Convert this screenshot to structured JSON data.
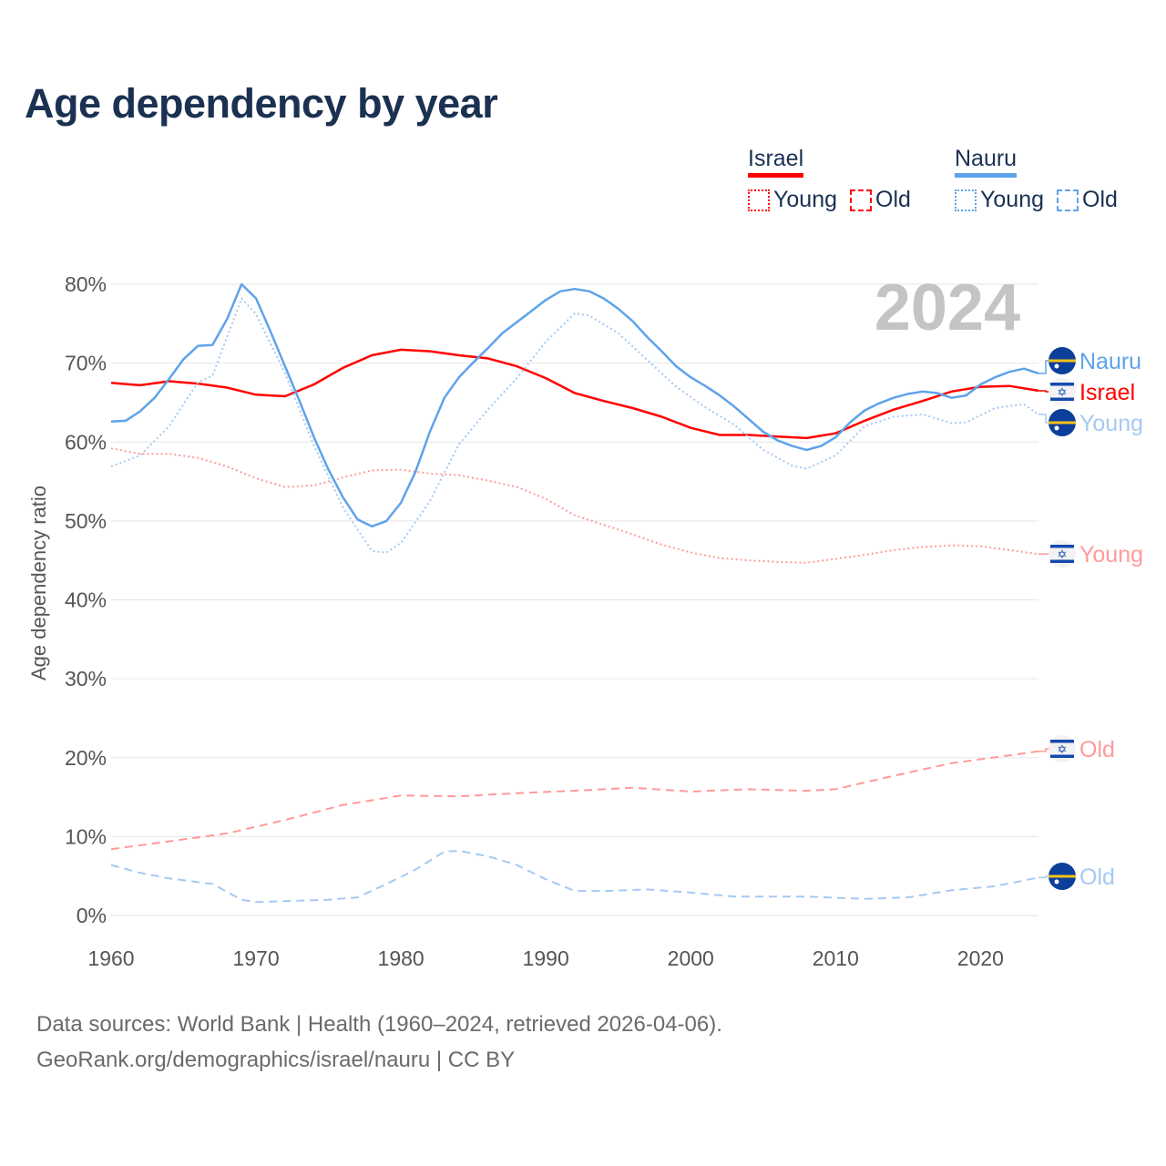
{
  "title": "Age dependency by year",
  "legend": {
    "groups": [
      {
        "name": "Israel",
        "color": "#ff0000",
        "items": [
          "Young",
          "Old"
        ]
      },
      {
        "name": "Nauru",
        "color": "#5ea3ea",
        "items": [
          "Young",
          "Old"
        ]
      }
    ]
  },
  "year_label": "2024",
  "footer": {
    "line1": "Data sources: World Bank | Health (1960–2024, retrieved 2026-04-06).",
    "line2": "GeoRank.org/demographics/israel/nauru | CC BY"
  },
  "chart_data": {
    "type": "line",
    "title": "Age dependency by year",
    "xlabel": "",
    "ylabel": "Age dependency ratio",
    "xlim": [
      1960,
      2024
    ],
    "ylim": [
      0,
      80
    ],
    "x_ticks": [
      "1960",
      "1970",
      "1980",
      "1990",
      "2000",
      "2010",
      "2020"
    ],
    "y_ticks": [
      "0%",
      "10%",
      "20%",
      "30%",
      "40%",
      "50%",
      "60%",
      "70%",
      "80%"
    ],
    "grid": true,
    "series": [
      {
        "name": "Israel",
        "label": "Israel",
        "country": "Israel",
        "style": "solid",
        "color": "#ff0000",
        "x": [
          1960,
          1962,
          1964,
          1966,
          1968,
          1970,
          1972,
          1974,
          1976,
          1978,
          1980,
          1982,
          1984,
          1986,
          1988,
          1990,
          1992,
          1994,
          1996,
          1998,
          2000,
          2002,
          2004,
          2006,
          2008,
          2010,
          2012,
          2014,
          2016,
          2018,
          2020,
          2022,
          2024
        ],
        "y": [
          67.5,
          67.2,
          67.7,
          67.4,
          66.9,
          66.0,
          65.8,
          67.3,
          69.4,
          71.0,
          71.7,
          71.5,
          71.0,
          70.6,
          69.6,
          68.1,
          66.2,
          65.2,
          64.3,
          63.2,
          61.8,
          60.9,
          60.9,
          60.7,
          60.5,
          61.1,
          62.7,
          64.1,
          65.2,
          66.4,
          67.0,
          67.1,
          66.5
        ]
      },
      {
        "name": "Israel Young",
        "label": "Young",
        "country": "Israel",
        "style": "dotted",
        "color": "#ff9a9a",
        "x": [
          1960,
          1962,
          1964,
          1966,
          1968,
          1970,
          1972,
          1974,
          1976,
          1978,
          1980,
          1982,
          1984,
          1986,
          1988,
          1990,
          1992,
          1994,
          1996,
          1998,
          2000,
          2002,
          2004,
          2006,
          2008,
          2010,
          2012,
          2014,
          2016,
          2018,
          2020,
          2022,
          2024
        ],
        "y": [
          59.2,
          58.5,
          58.5,
          58.0,
          56.9,
          55.4,
          54.3,
          54.5,
          55.5,
          56.4,
          56.5,
          56.0,
          55.8,
          55.1,
          54.3,
          52.8,
          50.7,
          49.5,
          48.3,
          47.0,
          46.0,
          45.3,
          45.0,
          44.8,
          44.7,
          45.2,
          45.7,
          46.3,
          46.7,
          46.9,
          46.8,
          46.3,
          45.8
        ]
      },
      {
        "name": "Israel Old",
        "label": "Old",
        "country": "Israel",
        "style": "dashed",
        "color": "#ff9a9a",
        "x": [
          1960,
          1964,
          1968,
          1972,
          1976,
          1980,
          1984,
          1988,
          1992,
          1996,
          2000,
          2004,
          2008,
          2010,
          2014,
          2018,
          2022,
          2024
        ],
        "y": [
          8.4,
          9.4,
          10.4,
          12.1,
          14.0,
          15.2,
          15.1,
          15.5,
          15.8,
          16.2,
          15.7,
          16.0,
          15.8,
          16.0,
          17.7,
          19.3,
          20.3,
          20.8
        ]
      },
      {
        "name": "Nauru",
        "label": "Nauru",
        "country": "Nauru",
        "style": "solid",
        "color": "#5ea3ea",
        "x": [
          1960,
          1961,
          1962,
          1963,
          1964,
          1965,
          1966,
          1967,
          1968,
          1969,
          1970,
          1971,
          1972,
          1973,
          1974,
          1975,
          1976,
          1977,
          1978,
          1979,
          1980,
          1981,
          1982,
          1983,
          1984,
          1985,
          1986,
          1987,
          1988,
          1989,
          1990,
          1991,
          1992,
          1993,
          1994,
          1995,
          1996,
          1997,
          1998,
          1999,
          2000,
          2001,
          2002,
          2003,
          2004,
          2005,
          2006,
          2007,
          2008,
          2009,
          2010,
          2011,
          2012,
          2013,
          2014,
          2015,
          2016,
          2017,
          2018,
          2019,
          2020,
          2021,
          2022,
          2023,
          2024
        ],
        "y": [
          62.6,
          62.7,
          63.9,
          65.6,
          68.0,
          70.5,
          72.2,
          72.3,
          75.6,
          80.0,
          78.2,
          74.0,
          69.6,
          65.2,
          60.6,
          56.5,
          53.0,
          50.2,
          49.3,
          50.0,
          52.3,
          56.2,
          61.3,
          65.6,
          68.2,
          70.1,
          71.9,
          73.8,
          75.2,
          76.6,
          78.0,
          79.1,
          79.4,
          79.1,
          78.2,
          76.9,
          75.3,
          73.3,
          71.5,
          69.6,
          68.2,
          67.1,
          65.9,
          64.5,
          62.9,
          61.3,
          60.2,
          59.5,
          59.0,
          59.5,
          60.6,
          62.5,
          64.0,
          64.9,
          65.6,
          66.1,
          66.4,
          66.2,
          65.6,
          65.9,
          67.3,
          68.2,
          68.9,
          69.3,
          68.7
        ]
      },
      {
        "name": "Nauru Young",
        "label": "Young",
        "country": "Nauru",
        "style": "dotted",
        "color": "#a6c9f2",
        "x": [
          1960,
          1962,
          1964,
          1966,
          1967,
          1969,
          1970,
          1972,
          1974,
          1976,
          1978,
          1979,
          1980,
          1982,
          1984,
          1986,
          1988,
          1990,
          1992,
          1993,
          1995,
          1997,
          1999,
          2001,
          2003,
          2005,
          2007,
          2008,
          2010,
          2012,
          2014,
          2016,
          2018,
          2019,
          2021,
          2023,
          2024
        ],
        "y": [
          56.9,
          58.3,
          62.0,
          67.6,
          68.4,
          78.2,
          76.2,
          68.7,
          59.5,
          51.7,
          46.2,
          46.0,
          47.2,
          52.5,
          59.7,
          64.1,
          68.1,
          72.7,
          76.3,
          76.0,
          73.8,
          70.4,
          67.0,
          64.4,
          62.2,
          59.0,
          57.0,
          56.6,
          58.3,
          62.0,
          63.2,
          63.5,
          62.4,
          62.5,
          64.3,
          64.8,
          63.5
        ]
      },
      {
        "name": "Nauru Old",
        "label": "Old",
        "country": "Nauru",
        "style": "dashed",
        "color": "#a6c9f2",
        "x": [
          1960,
          1962,
          1964,
          1967,
          1969,
          1970,
          1975,
          1977,
          1979,
          1981,
          1983,
          1984,
          1986,
          1988,
          1990,
          1992,
          1994,
          1997,
          2000,
          2003,
          2008,
          2012,
          2015,
          2018,
          2021,
          2024
        ],
        "y": [
          6.4,
          5.4,
          4.7,
          4.0,
          2.0,
          1.7,
          2.0,
          2.3,
          4.0,
          5.8,
          8.1,
          8.2,
          7.5,
          6.4,
          4.6,
          3.1,
          3.1,
          3.3,
          2.9,
          2.4,
          2.4,
          2.1,
          2.3,
          3.2,
          3.7,
          4.8
        ]
      }
    ]
  }
}
